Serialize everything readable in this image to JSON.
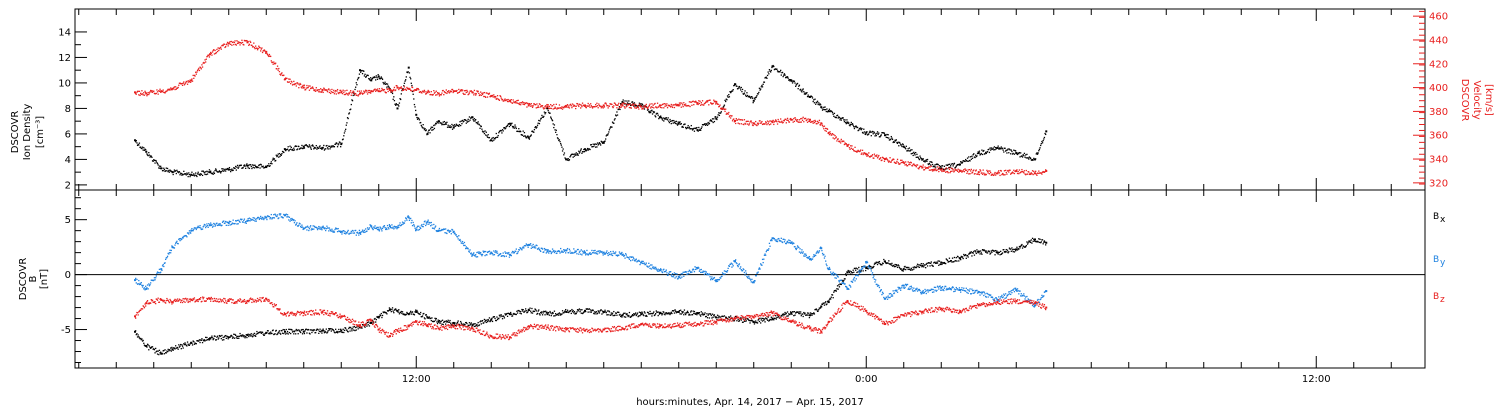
{
  "colors": {
    "black": "#000000",
    "red": "#e8201f",
    "blue": "#1f82e0"
  },
  "chart_data": [
    {
      "type": "scatter",
      "panel": "plasma",
      "ylabel_left": [
        "DSCOVR",
        "Ion Density",
        "[cm⁻³]"
      ],
      "ylabel_right": [
        "DSCOVR",
        "Velocity",
        "[km/s]"
      ],
      "ylim_left": [
        1.6,
        15.8
      ],
      "ylim_right": [
        314,
        466
      ],
      "yticks_left": [
        2,
        4,
        6,
        8,
        10,
        12,
        14
      ],
      "yticks_right": [
        320,
        340,
        360,
        380,
        400,
        420,
        440,
        460
      ],
      "x_unit": "hours from Apr. 14, 2017 00:00",
      "series": [
        {
          "name": "Ion Density",
          "axis": "left",
          "color": "black",
          "x": [
            4.5,
            4.8,
            5.2,
            5.5,
            6.0,
            6.5,
            7.0,
            7.5,
            8.0,
            8.5,
            9.0,
            9.5,
            10.0,
            10.5,
            10.8,
            11.0,
            11.3,
            11.5,
            11.8,
            12.0,
            12.3,
            12.6,
            13.0,
            13.5,
            14.0,
            14.5,
            15.0,
            15.5,
            16.0,
            16.5,
            17.0,
            17.5,
            18.0,
            18.5,
            19.0,
            19.5,
            20.0,
            20.5,
            21.0,
            21.5,
            22.0,
            22.5,
            22.8,
            23.0,
            23.5,
            24.0,
            24.5,
            25.0,
            25.5,
            26.0,
            26.5,
            27.0,
            27.5,
            28.0,
            28.5,
            28.8
          ],
          "y": [
            5.5,
            4.6,
            3.3,
            3.0,
            2.8,
            3.0,
            3.2,
            3.5,
            3.4,
            4.8,
            5.0,
            4.9,
            5.2,
            11.0,
            10.2,
            10.5,
            9.5,
            8.0,
            11.2,
            7.5,
            6.0,
            7.0,
            6.5,
            7.3,
            5.5,
            6.8,
            5.7,
            8.0,
            4.0,
            4.8,
            5.3,
            8.5,
            8.2,
            7.3,
            6.8,
            6.3,
            7.2,
            9.9,
            8.6,
            11.3,
            10.2,
            8.9,
            8.1,
            7.8,
            6.9,
            6.1,
            5.9,
            5.0,
            4.0,
            3.3,
            3.6,
            4.5,
            4.9,
            4.5,
            4.0,
            6.2
          ]
        },
        {
          "name": "Velocity",
          "axis": "right",
          "color": "red",
          "x": [
            4.5,
            4.8,
            5.2,
            5.5,
            6.0,
            6.5,
            7.0,
            7.5,
            8.0,
            8.5,
            9.0,
            9.5,
            10.0,
            10.5,
            10.8,
            11.0,
            11.3,
            11.5,
            11.8,
            12.0,
            12.3,
            12.6,
            13.0,
            13.5,
            14.0,
            14.5,
            15.0,
            15.5,
            16.0,
            16.5,
            17.0,
            17.5,
            18.0,
            18.5,
            19.0,
            19.5,
            20.0,
            20.5,
            21.0,
            21.5,
            22.0,
            22.5,
            22.8,
            23.0,
            23.5,
            24.0,
            24.5,
            25.0,
            25.5,
            26.0,
            26.5,
            27.0,
            27.5,
            28.0,
            28.5,
            28.8
          ],
          "y": [
            396,
            395,
            397,
            399,
            406,
            428,
            437,
            438,
            430,
            407,
            400,
            398,
            396,
            395,
            397,
            397,
            398,
            400,
            399,
            398,
            396,
            395,
            397,
            396,
            393,
            389,
            385,
            384,
            384,
            385,
            385,
            385,
            384,
            385,
            385,
            387,
            388,
            372,
            370,
            371,
            373,
            373,
            370,
            362,
            351,
            344,
            340,
            337,
            333,
            331,
            330,
            329,
            328,
            330,
            328,
            330
          ]
        }
      ]
    },
    {
      "type": "scatter",
      "panel": "magnetic",
      "ylabel_left": [
        "DSCOVR",
        "B",
        "[nT]"
      ],
      "ylim": [
        -8.5,
        7.7
      ],
      "yticks": [
        -5,
        0,
        5
      ],
      "zero_line": 0,
      "x_unit": "hours from Apr. 14, 2017 00:00",
      "series": [
        {
          "name": "Bx",
          "label_main": "B",
          "label_sub": "x",
          "color": "black",
          "x": [
            4.5,
            4.8,
            5.2,
            5.5,
            6.0,
            6.5,
            7.0,
            7.5,
            8.0,
            8.5,
            9.0,
            9.5,
            10.0,
            10.5,
            10.8,
            11.0,
            11.3,
            11.5,
            11.8,
            12.0,
            12.3,
            12.6,
            13.0,
            13.5,
            14.0,
            14.5,
            15.0,
            15.5,
            16.0,
            16.5,
            17.0,
            17.5,
            18.0,
            18.5,
            19.0,
            19.5,
            20.0,
            20.5,
            21.0,
            21.5,
            22.0,
            22.5,
            22.8,
            23.0,
            23.5,
            24.0,
            24.5,
            25.0,
            25.5,
            26.0,
            26.5,
            27.0,
            27.5,
            28.0,
            28.5,
            28.8
          ],
          "y": [
            -5.2,
            -6.5,
            -7.2,
            -6.8,
            -6.2,
            -5.8,
            -5.7,
            -5.5,
            -5.3,
            -5.2,
            -5.2,
            -5.1,
            -5.1,
            -4.8,
            -4.4,
            -3.9,
            -3.2,
            -3.3,
            -3.6,
            -3.4,
            -3.9,
            -4.3,
            -4.4,
            -4.6,
            -4.1,
            -3.6,
            -3.2,
            -3.6,
            -3.4,
            -3.3,
            -3.4,
            -3.7,
            -3.6,
            -3.5,
            -3.4,
            -3.5,
            -3.9,
            -4.0,
            -4.3,
            -4.0,
            -3.5,
            -3.7,
            -2.9,
            -2.5,
            0.2,
            0.6,
            1.2,
            0.5,
            0.8,
            1.1,
            1.5,
            2.1,
            2.0,
            2.3,
            3.2,
            2.9
          ]
        },
        {
          "name": "By",
          "label_main": "B",
          "label_sub": "y",
          "color": "blue",
          "x": [
            4.5,
            4.8,
            5.2,
            5.5,
            6.0,
            6.5,
            7.0,
            7.5,
            8.0,
            8.5,
            9.0,
            9.5,
            10.0,
            10.5,
            10.8,
            11.0,
            11.3,
            11.5,
            11.8,
            12.0,
            12.3,
            12.6,
            13.0,
            13.5,
            14.0,
            14.5,
            15.0,
            15.5,
            16.0,
            16.5,
            17.0,
            17.5,
            18.0,
            18.5,
            19.0,
            19.5,
            20.0,
            20.5,
            21.0,
            21.5,
            22.0,
            22.5,
            22.8,
            23.0,
            23.5,
            24.0,
            24.5,
            25.0,
            25.5,
            26.0,
            26.5,
            27.0,
            27.5,
            28.0,
            28.5,
            28.8
          ],
          "y": [
            -0.5,
            -1.3,
            0.5,
            2.5,
            4.0,
            4.5,
            4.7,
            4.9,
            5.2,
            5.4,
            4.2,
            4.3,
            3.9,
            3.8,
            4.4,
            4.1,
            4.4,
            4.3,
            5.2,
            4.1,
            4.8,
            4.0,
            3.9,
            1.8,
            2.0,
            1.8,
            2.7,
            2.1,
            2.2,
            2.0,
            2.0,
            1.8,
            1.1,
            0.4,
            -0.2,
            0.6,
            -0.6,
            1.2,
            -0.7,
            3.3,
            2.9,
            1.4,
            2.4,
            0.5,
            -1.3,
            1.1,
            -2.2,
            -1.0,
            -1.6,
            -1.2,
            -1.4,
            -1.6,
            -2.3,
            -1.4,
            -2.8,
            -1.5
          ]
        },
        {
          "name": "Bz",
          "label_main": "B",
          "label_sub": "z",
          "color": "red",
          "x": [
            4.5,
            4.8,
            5.2,
            5.5,
            6.0,
            6.5,
            7.0,
            7.5,
            8.0,
            8.5,
            9.0,
            9.5,
            10.0,
            10.5,
            10.8,
            11.0,
            11.3,
            11.5,
            11.8,
            12.0,
            12.3,
            12.6,
            13.0,
            13.5,
            14.0,
            14.5,
            15.0,
            15.5,
            16.0,
            16.5,
            17.0,
            17.5,
            18.0,
            18.5,
            19.0,
            19.5,
            20.0,
            20.5,
            21.0,
            21.5,
            22.0,
            22.5,
            22.8,
            23.0,
            23.5,
            24.0,
            24.5,
            25.0,
            25.5,
            26.0,
            26.5,
            27.0,
            27.5,
            28.0,
            28.5,
            28.8
          ],
          "y": [
            -3.8,
            -2.6,
            -2.3,
            -2.5,
            -2.3,
            -2.2,
            -2.4,
            -2.4,
            -2.2,
            -3.6,
            -3.5,
            -3.4,
            -3.8,
            -4.6,
            -4.2,
            -5.0,
            -5.6,
            -5.1,
            -4.7,
            -4.3,
            -4.6,
            -4.9,
            -4.7,
            -4.9,
            -5.6,
            -5.7,
            -4.7,
            -4.8,
            -5.0,
            -5.1,
            -5.0,
            -4.9,
            -4.5,
            -4.7,
            -4.6,
            -4.5,
            -4.3,
            -4.0,
            -3.9,
            -3.5,
            -4.3,
            -4.9,
            -5.2,
            -4.3,
            -2.4,
            -3.3,
            -4.5,
            -3.7,
            -3.4,
            -3.1,
            -3.4,
            -2.8,
            -2.5,
            -2.4,
            -2.6,
            -3.0
          ]
        }
      ]
    }
  ],
  "x_axis": {
    "range": [
      2.9,
      38.9
    ],
    "tick_labels": [
      {
        "x": 12,
        "label": "12:00"
      },
      {
        "x": 24,
        "label": "0:00"
      },
      {
        "x": 36,
        "label": "12:00"
      }
    ],
    "title": "hours:minutes, Apr. 14, 2017 − Apr. 15, 2017"
  }
}
